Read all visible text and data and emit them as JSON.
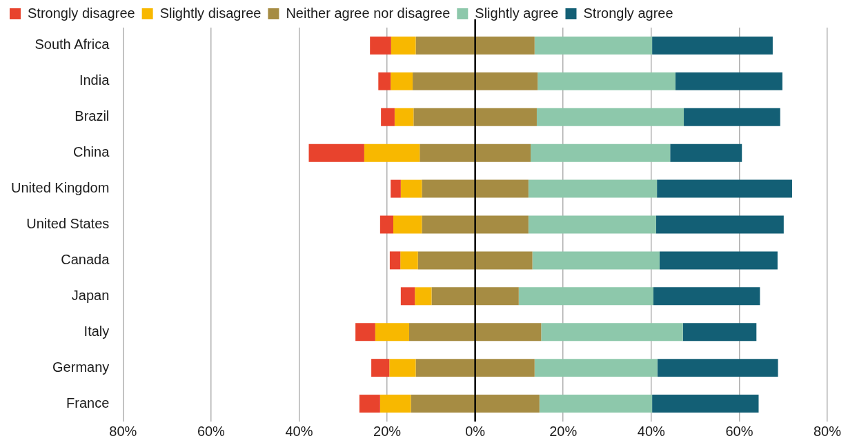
{
  "chart_data": {
    "type": "bar",
    "orientation": "horizontal",
    "categories": [
      "South Africa",
      "India",
      "Brazil",
      "China",
      "United Kingdom",
      "United States",
      "Canada",
      "Japan",
      "Italy",
      "Germany",
      "France"
    ],
    "series": [
      {
        "name": "Strongly disagree",
        "color": "#e8432d",
        "base": [
          -23.9,
          -22.0,
          -21.4,
          -37.8,
          -19.2,
          -21.6,
          -19.4,
          -16.9,
          -27.2,
          -23.6,
          -26.3
        ],
        "values": [
          4.8,
          2.8,
          3.1,
          12.6,
          2.3,
          3.0,
          2.4,
          3.2,
          4.5,
          4.1,
          4.7
        ]
      },
      {
        "name": "Slightly disagree",
        "color": "#f8b800",
        "base": [
          -19.1,
          -19.2,
          -18.3,
          -25.2,
          -16.9,
          -18.6,
          -17.0,
          -13.7,
          -22.7,
          -19.5,
          -21.6
        ],
        "values": [
          5.6,
          5.0,
          4.3,
          12.6,
          4.8,
          6.5,
          4.0,
          3.8,
          7.7,
          6.0,
          7.0
        ]
      },
      {
        "name": "Neither agree nor disagree",
        "color": "#a68c43",
        "base": [
          -13.5,
          -14.2,
          -14.0,
          -12.6,
          -12.1,
          -12.1,
          -13.0,
          -9.9,
          -15.0,
          -13.5,
          -14.6
        ],
        "values": [
          27.0,
          28.4,
          28.0,
          25.2,
          24.2,
          24.2,
          26.0,
          19.8,
          30.0,
          27.0,
          29.2
        ]
      },
      {
        "name": "Slightly agree",
        "color": "#8dc8ab",
        "base": [
          13.5,
          14.2,
          14.0,
          12.6,
          12.1,
          12.1,
          13.0,
          9.9,
          15.0,
          13.5,
          14.6
        ],
        "values": [
          26.7,
          31.3,
          33.4,
          31.7,
          29.2,
          29.0,
          28.9,
          30.6,
          32.2,
          27.9,
          25.6
        ]
      },
      {
        "name": "Strongly agree",
        "color": "#135f75",
        "base": [
          40.2,
          45.5,
          47.4,
          44.3,
          41.3,
          41.1,
          41.9,
          40.5,
          47.2,
          41.4,
          40.2
        ],
        "values": [
          27.4,
          24.3,
          21.9,
          16.3,
          30.7,
          29.0,
          26.8,
          24.2,
          16.7,
          27.4,
          24.2
        ]
      }
    ],
    "xlim": [
      -80,
      80
    ],
    "xticks": [
      {
        "value": -80,
        "label": "80%"
      },
      {
        "value": -60,
        "label": "60%"
      },
      {
        "value": -40,
        "label": "40%"
      },
      {
        "value": -20,
        "label": "20%"
      },
      {
        "value": 0,
        "label": "0%"
      },
      {
        "value": 20,
        "label": "20%"
      },
      {
        "value": 40,
        "label": "40%"
      },
      {
        "value": 60,
        "label": "60%"
      },
      {
        "value": 80,
        "label": "80%"
      }
    ],
    "ref_lines": [
      {
        "axis": "x",
        "value": 0,
        "color": "#000000"
      }
    ],
    "grid": "x",
    "legend": "top left"
  }
}
